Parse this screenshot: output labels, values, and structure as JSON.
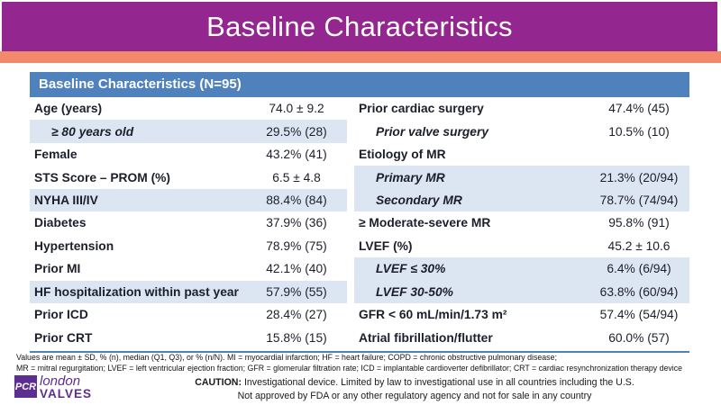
{
  "colors": {
    "banner_bg": "#93278F",
    "accent_stripe": "#F2896B",
    "table_header_bg": "#4F81BD",
    "shaded_row_bg": "#DCE6F2",
    "bottom_rule": "#4F81BD",
    "logo_purple": "#5C2E91"
  },
  "banner": {
    "title": "Baseline Characteristics"
  },
  "table": {
    "header": "Baseline Characteristics (N=95)",
    "left_rows": [
      {
        "label": "Age (years)",
        "value": "74.0 ± 9.2",
        "indent": false,
        "shaded": false
      },
      {
        "label": "≥ 80 years old",
        "value": "29.5% (28)",
        "indent": true,
        "shaded": true
      },
      {
        "label": "Female",
        "value": "43.2% (41)",
        "indent": false,
        "shaded": false
      },
      {
        "label": "STS Score – PROM (%)",
        "value": "6.5 ± 4.8",
        "indent": false,
        "shaded": false
      },
      {
        "label": "NYHA III/IV",
        "value": "88.4% (84)",
        "indent": false,
        "shaded": true
      },
      {
        "label": "Diabetes",
        "value": "37.9% (36)",
        "indent": false,
        "shaded": false
      },
      {
        "label": "Hypertension",
        "value": "78.9% (75)",
        "indent": false,
        "shaded": false
      },
      {
        "label": "Prior MI",
        "value": "42.1% (40)",
        "indent": false,
        "shaded": false
      },
      {
        "label": "HF hospitalization within past year",
        "value": "57.9% (55)",
        "indent": false,
        "shaded": true
      },
      {
        "label": "Prior ICD",
        "value": "28.4% (27)",
        "indent": false,
        "shaded": false
      },
      {
        "label": "Prior CRT",
        "value": "15.8% (15)",
        "indent": false,
        "shaded": false
      }
    ],
    "right_rows": [
      {
        "label": "Prior cardiac surgery",
        "value": "47.4% (45)",
        "indent": false,
        "shaded": false
      },
      {
        "label": "Prior valve surgery",
        "value": "10.5% (10)",
        "indent": true,
        "shaded": false
      },
      {
        "label": "Etiology of MR",
        "value": "",
        "indent": false,
        "shaded": false
      },
      {
        "label": "Primary MR",
        "value": "21.3% (20/94)",
        "indent": true,
        "shaded": true
      },
      {
        "label": "Secondary MR",
        "value": "78.7% (74/94)",
        "indent": true,
        "shaded": true
      },
      {
        "label": "≥ Moderate-severe MR",
        "value": "95.8% (91)",
        "indent": false,
        "shaded": false
      },
      {
        "label": "LVEF (%)",
        "value": "45.2 ± 10.6",
        "indent": false,
        "shaded": false
      },
      {
        "label": "LVEF ≤ 30%",
        "value": "6.4% (6/94)",
        "indent": true,
        "shaded": true
      },
      {
        "label": "LVEF 30-50%",
        "value": "63.8% (60/94)",
        "indent": true,
        "shaded": true
      },
      {
        "label": "GFR < 60 mL/min/1.73 m²",
        "value": "57.4% (54/94)",
        "indent": false,
        "shaded": false
      },
      {
        "label": "Atrial fibrillation/flutter",
        "value": "60.0% (57)",
        "indent": false,
        "shaded": false
      }
    ]
  },
  "footnote": {
    "line1": "Values are mean ± SD, % (n), median (Q1, Q3), or % (n/N). MI = myocardial infarction; HF = heart failure; COPD = chronic obstructive pulmonary disease;",
    "line2": "MR = mitral regurgitation; LVEF = left ventricular ejection fraction; GFR = glomerular filtration rate; ICD = implantable cardioverter defibrillator; CRT = cardiac resynchronization therapy device"
  },
  "footer": {
    "logo": {
      "pcr": "PCR",
      "line1": "london",
      "line2": "VALVES"
    },
    "caution_bold": "CAUTION:",
    "caution_line1": "Investigational device. Limited by law to investigational use in all countries including the U.S.",
    "caution_line2": "Not approved by FDA or any other regulatory agency and not for sale in any country"
  }
}
